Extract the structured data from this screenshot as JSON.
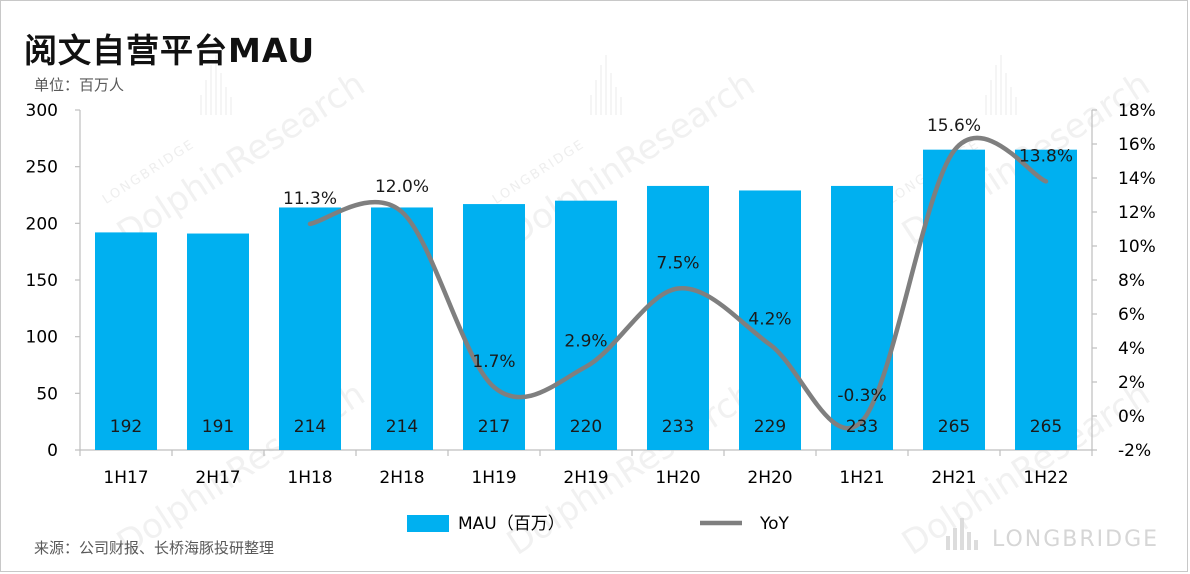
{
  "title": "阅文自营平台MAU",
  "unit": "单位：百万人",
  "source": "来源：公司财报、长桥海豚投研整理",
  "watermark": {
    "name": "DolphinResearch",
    "sub": "LONGBRIDGE",
    "brand": "LONGBRIDGE"
  },
  "colors": {
    "bar": "#00b0f0",
    "line": "#7f7f7f",
    "axis": "#bfbfbf",
    "text": "#000000"
  },
  "chart_data": {
    "type": "bar",
    "title": "阅文自营平台MAU",
    "categories": [
      "1H17",
      "2H17",
      "1H18",
      "2H18",
      "1H19",
      "2H19",
      "1H20",
      "2H20",
      "1H21",
      "2H21",
      "1H22"
    ],
    "series": [
      {
        "name": "MAU（百万）",
        "type": "bar",
        "axis": "left",
        "values": [
          192,
          191,
          214,
          214,
          217,
          220,
          233,
          229,
          233,
          265,
          265
        ],
        "labels": [
          "192",
          "191",
          "214",
          "214",
          "217",
          "220",
          "233",
          "229",
          "233",
          "265",
          "265"
        ]
      },
      {
        "name": "YoY",
        "type": "line",
        "axis": "right",
        "smooth": true,
        "values": [
          null,
          null,
          11.3,
          12.0,
          1.7,
          2.9,
          7.5,
          4.2,
          -0.3,
          15.6,
          13.8
        ],
        "labels": [
          "",
          "",
          "11.3%",
          "12.0%",
          "1.7%",
          "2.9%",
          "7.5%",
          "4.2%",
          "-0.3%",
          "15.6%",
          "13.8%"
        ]
      }
    ],
    "ylim": [
      0,
      300
    ],
    "yticks": [
      "0",
      "50",
      "100",
      "150",
      "200",
      "250",
      "300"
    ],
    "y2lim": [
      -2,
      18
    ],
    "y2ticks": [
      "-2%",
      "0%",
      "2%",
      "4%",
      "6%",
      "8%",
      "10%",
      "12%",
      "14%",
      "16%",
      "18%"
    ],
    "legend": [
      "MAU（百万）",
      "YoY"
    ],
    "legend_position": "bottom",
    "grid": false
  }
}
